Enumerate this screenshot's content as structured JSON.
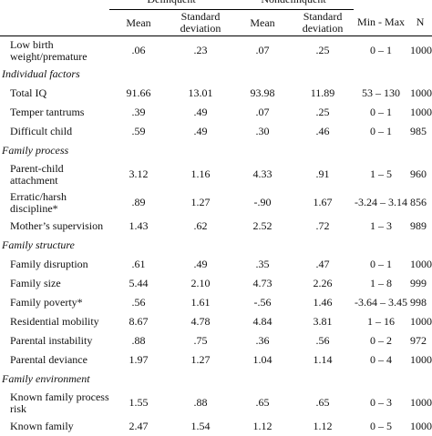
{
  "header": {
    "groups": [
      "Delinquent",
      "Nondelinquent"
    ],
    "columns": [
      "Mean",
      "Standard deviation",
      "Mean",
      "Standard deviation",
      "Min - Max",
      "N"
    ]
  },
  "rows": [
    {
      "type": "row",
      "label": "Low birth weight/premature",
      "m1": ".06",
      "sd1": ".23",
      "m2": ".07",
      "sd2": ".25",
      "range": "0 – 1",
      "n": "1000"
    },
    {
      "type": "section",
      "label": "Individual factors"
    },
    {
      "type": "row",
      "label": "Total IQ",
      "m1": "91.66",
      "sd1": "13.01",
      "m2": "93.98",
      "sd2": "11.89",
      "range": "53 – 130",
      "n": "1000"
    },
    {
      "type": "row",
      "label": "Temper tantrums",
      "m1": ".39",
      "sd1": ".49",
      "m2": ".07",
      "sd2": ".25",
      "range": "0 – 1",
      "n": "1000"
    },
    {
      "type": "row",
      "label": "Difficult child",
      "m1": ".59",
      "sd1": ".49",
      "m2": ".30",
      "sd2": ".46",
      "range": "0 – 1",
      "n": "985"
    },
    {
      "type": "section",
      "label": "Family process"
    },
    {
      "type": "row",
      "label": "Parent-child attachment",
      "m1": "3.12",
      "sd1": "1.16",
      "m2": "4.33",
      "sd2": ".91",
      "range": "1 – 5",
      "n": "960"
    },
    {
      "type": "row",
      "label": "Erratic/harsh discipline*",
      "m1": ".89",
      "sd1": "1.27",
      "m2": "-.90",
      "sd2": "1.67",
      "range": "-3.24 – 3.14",
      "n": "856"
    },
    {
      "type": "row",
      "label": "Mother’s supervision",
      "m1": "1.43",
      "sd1": ".62",
      "m2": "2.52",
      "sd2": ".72",
      "range": "1 – 3",
      "n": "989"
    },
    {
      "type": "section",
      "label": "Family structure"
    },
    {
      "type": "row",
      "label": "Family disruption",
      "m1": ".61",
      "sd1": ".49",
      "m2": ".35",
      "sd2": ".47",
      "range": "0 – 1",
      "n": "1000"
    },
    {
      "type": "row",
      "label": "Family size",
      "m1": "5.44",
      "sd1": "2.10",
      "m2": "4.73",
      "sd2": "2.26",
      "range": "1 – 8",
      "n": "999"
    },
    {
      "type": "row",
      "label": "Family poverty*",
      "m1": ".56",
      "sd1": "1.61",
      "m2": "-.56",
      "sd2": "1.46",
      "range": "-3.64 – 3.45",
      "n": "998"
    },
    {
      "type": "row",
      "label": "Residential mobility",
      "m1": "8.67",
      "sd1": "4.78",
      "m2": "4.84",
      "sd2": "3.81",
      "range": "1 – 16",
      "n": "1000"
    },
    {
      "type": "row",
      "label": "Parental instability",
      "m1": ".88",
      "sd1": ".75",
      "m2": ".36",
      "sd2": ".56",
      "range": "0 – 2",
      "n": "972"
    },
    {
      "type": "row",
      "label": "Parental deviance",
      "m1": "1.97",
      "sd1": "1.27",
      "m2": "1.04",
      "sd2": "1.14",
      "range": "0 – 4",
      "n": "1000"
    },
    {
      "type": "section",
      "label": "Family environment"
    },
    {
      "type": "row",
      "label": "Known family process risk",
      "m1": "1.55",
      "sd1": ".88",
      "m2": ".65",
      "sd2": ".65",
      "range": "0 – 3",
      "n": "1000"
    },
    {
      "type": "row",
      "label": "Known family",
      "m1": "2.47",
      "sd1": "1.54",
      "m2": "1.12",
      "sd2": "1.12",
      "range": "0 – 5",
      "n": "1000"
    }
  ]
}
